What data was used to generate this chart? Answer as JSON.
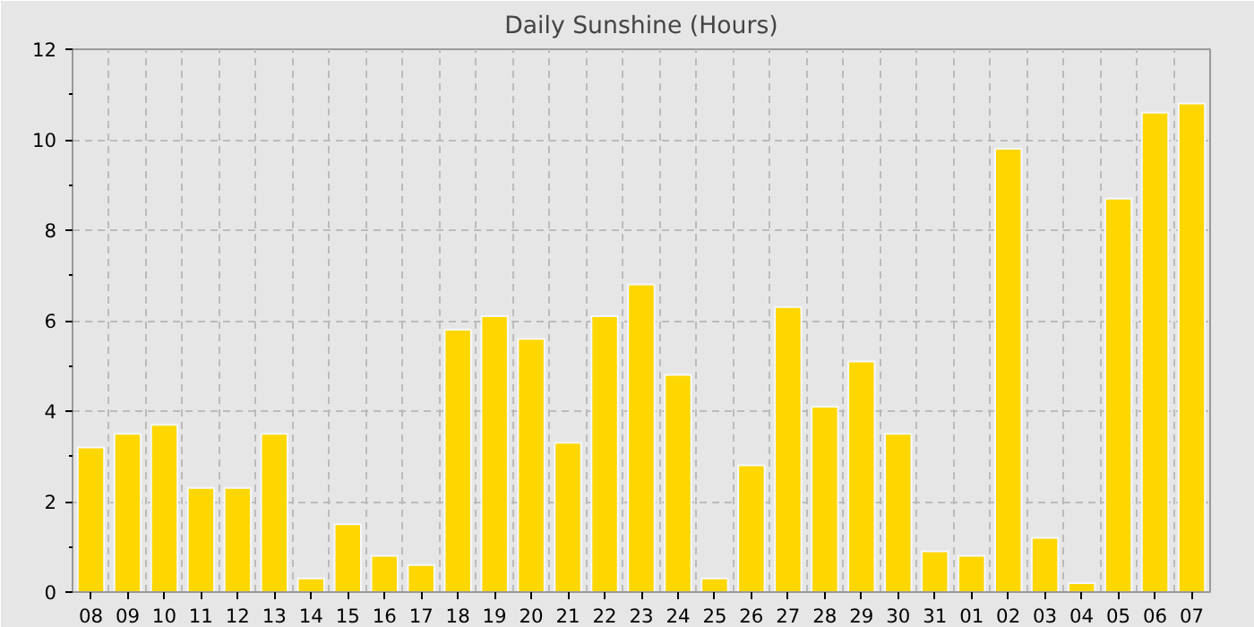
{
  "chart_data": {
    "type": "bar",
    "title": "Daily Sunshine (Hours)",
    "categories": [
      "08",
      "09",
      "10",
      "11",
      "12",
      "13",
      "14",
      "15",
      "16",
      "17",
      "18",
      "19",
      "20",
      "21",
      "22",
      "23",
      "24",
      "25",
      "26",
      "27",
      "28",
      "29",
      "30",
      "31",
      "01",
      "02",
      "03",
      "04",
      "05",
      "06",
      "07"
    ],
    "values": [
      3.2,
      3.5,
      3.7,
      2.3,
      2.3,
      3.5,
      0.3,
      1.5,
      0.8,
      0.6,
      5.8,
      6.1,
      5.6,
      3.3,
      6.1,
      6.8,
      4.8,
      0.3,
      2.8,
      6.3,
      4.1,
      5.1,
      3.5,
      0.9,
      0.8,
      9.8,
      1.2,
      0.2,
      8.7,
      10.6,
      10.8
    ],
    "color": "#ffd700",
    "ylim": [
      0,
      12
    ],
    "yticks": [
      0,
      2,
      4,
      6,
      8,
      10,
      12
    ],
    "grid": true
  }
}
